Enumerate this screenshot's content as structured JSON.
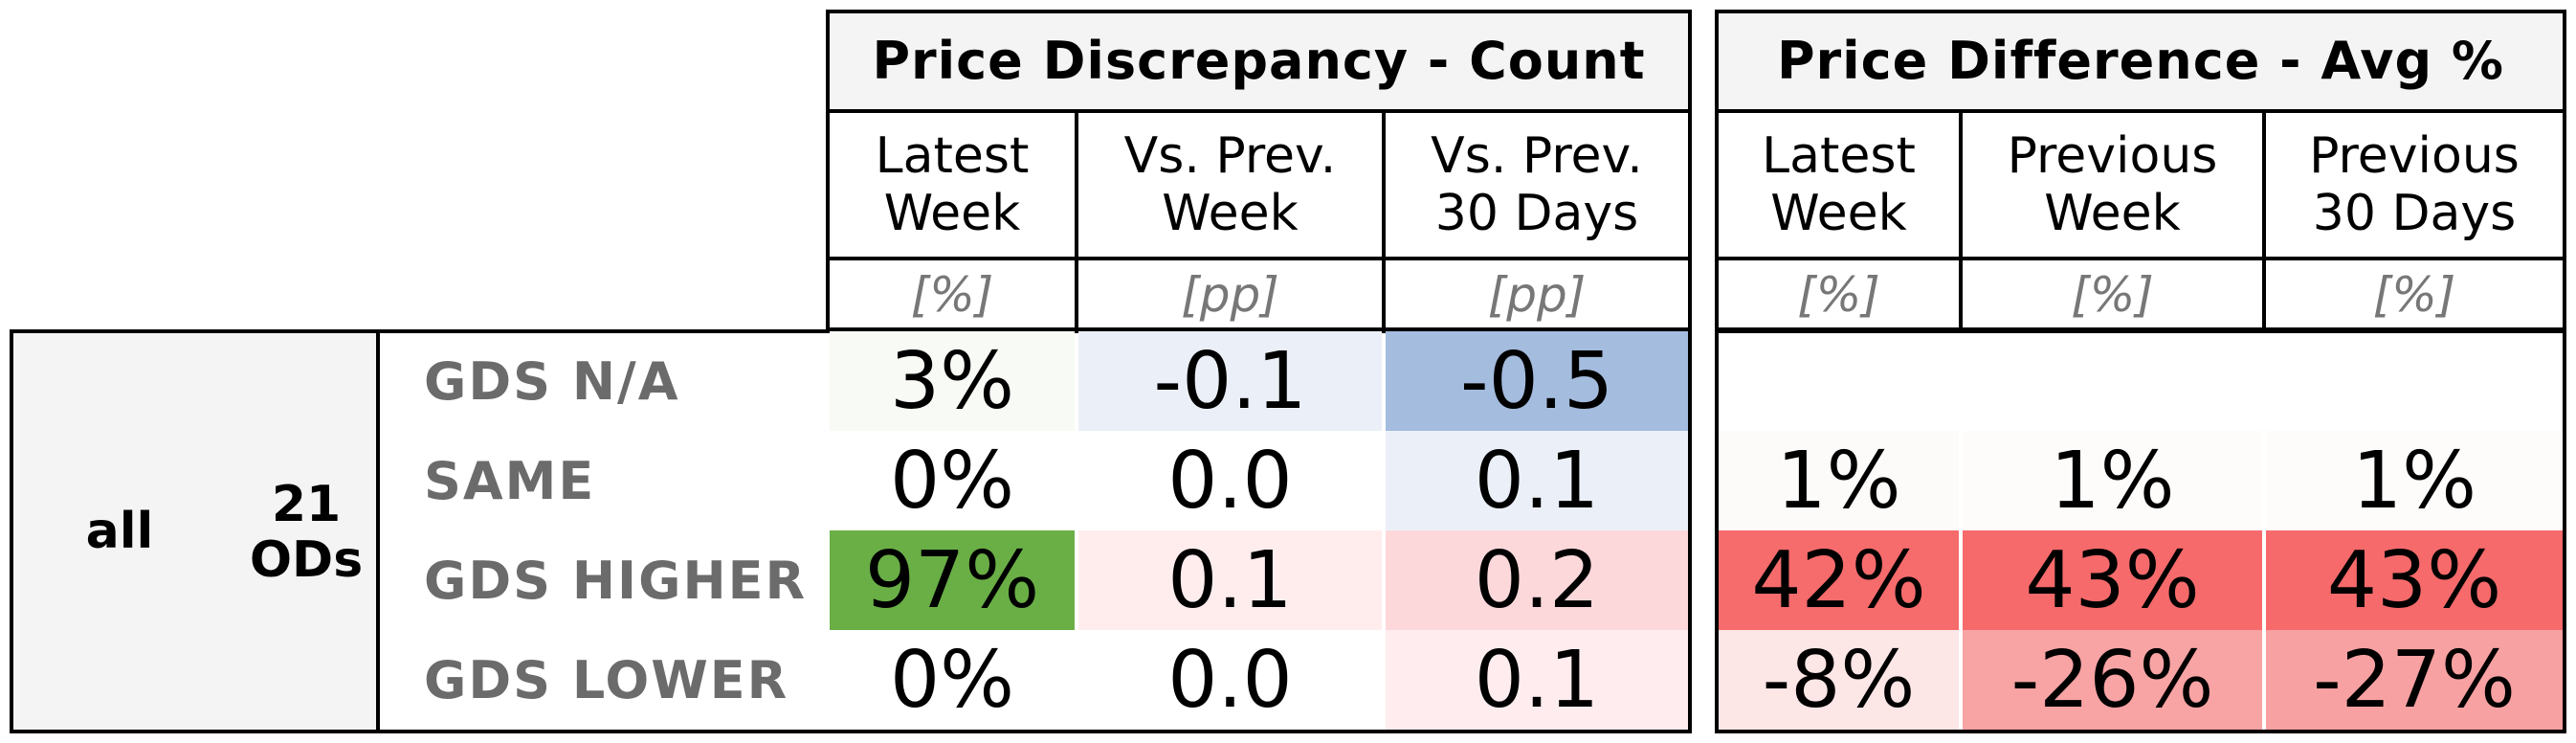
{
  "chart_data": {
    "type": "table",
    "group": {
      "label": "all",
      "count": "21",
      "count_unit": "ODs"
    },
    "row_labels": [
      "GDS N/A",
      "SAME",
      "GDS HIGHER",
      "GDS LOWER"
    ],
    "panels": [
      {
        "title": "Price Discrepancy - Count",
        "columns": [
          {
            "header": "Latest\nWeek",
            "unit": "[%]"
          },
          {
            "header": "Vs. Prev.\nWeek",
            "unit": "[pp]"
          },
          {
            "header": "Vs. Prev.\n30 Days",
            "unit": "[pp]"
          }
        ],
        "rows": [
          [
            "3%",
            "-0.1",
            "-0.5"
          ],
          [
            "0%",
            "0.0",
            "0.1"
          ],
          [
            "97%",
            "0.1",
            "0.2"
          ],
          [
            "0%",
            "0.0",
            "0.1"
          ]
        ],
        "colors": [
          [
            "#f7faf5",
            "#ebf0f8",
            "#a4bcde"
          ],
          [
            "#ffffff",
            "#ffffff",
            "#ebf0f8"
          ],
          [
            "#6aaf46",
            "#ffedee",
            "#fdd8db"
          ],
          [
            "#ffffff",
            "#ffffff",
            "#ffecee"
          ]
        ]
      },
      {
        "title": "Price Difference - Avg %",
        "columns": [
          {
            "header": "Latest\nWeek",
            "unit": "[%]"
          },
          {
            "header": "Previous\nWeek",
            "unit": "[%]"
          },
          {
            "header": "Previous\n30 Days",
            "unit": "[%]"
          }
        ],
        "rows": [
          [
            "",
            "",
            ""
          ],
          [
            "1%",
            "1%",
            "1%"
          ],
          [
            "42%",
            "43%",
            "43%"
          ],
          [
            "-8%",
            "-26%",
            "-27%"
          ]
        ],
        "colors": [
          [
            "#ffffff",
            "#ffffff",
            "#ffffff"
          ],
          [
            "#fcfbfa",
            "#fdfcfb",
            "#fdfcfb"
          ],
          [
            "#f66b6c",
            "#f66a6b",
            "#f66a6b"
          ],
          [
            "#fde6e6",
            "#f8a3a4",
            "#f8a1a2"
          ]
        ]
      }
    ]
  }
}
